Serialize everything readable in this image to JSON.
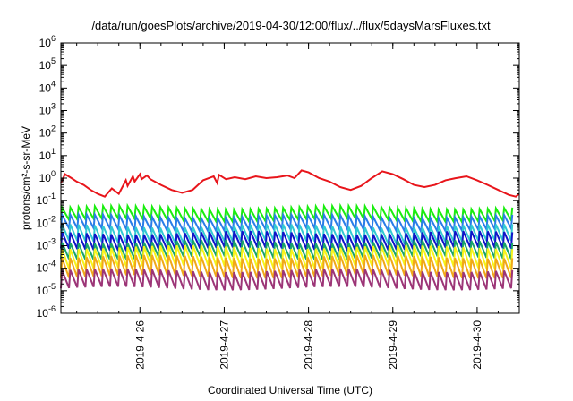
{
  "chart_data": {
    "type": "line",
    "title": "/data/run/goesPlots/archive/2019-04-30/12:00/flux/../flux/5daysMarsFluxes.txt",
    "xlabel": "Coordinated Universal Time (UTC)",
    "ylabel": "protons/cm²-s-sr-MeV",
    "y_scale": "log",
    "ylim": [
      1e-06,
      1000000.0
    ],
    "y_ticks": [
      {
        "value": 1e-06,
        "base": "10",
        "exp": "-6"
      },
      {
        "value": 1e-05,
        "base": "10",
        "exp": "-5"
      },
      {
        "value": 0.0001,
        "base": "10",
        "exp": "-4"
      },
      {
        "value": 0.001,
        "base": "10",
        "exp": "-3"
      },
      {
        "value": 0.01,
        "base": "10",
        "exp": "-2"
      },
      {
        "value": 0.1,
        "base": "10",
        "exp": "-1"
      },
      {
        "value": 1.0,
        "base": "10",
        "exp": "0"
      },
      {
        "value": 10.0,
        "base": "10",
        "exp": "1"
      },
      {
        "value": 100.0,
        "base": "10",
        "exp": "2"
      },
      {
        "value": 1000.0,
        "base": "10",
        "exp": "3"
      },
      {
        "value": 10000.0,
        "base": "10",
        "exp": "4"
      },
      {
        "value": 100000.0,
        "base": "10",
        "exp": "5"
      },
      {
        "value": 1000000.0,
        "base": "10",
        "exp": "6"
      }
    ],
    "xlim": [
      "2019-04-25T01:30",
      "2019-04-30T12:00"
    ],
    "x_ticks": [
      "2019-4-26",
      "2019-4-27",
      "2019-4-28",
      "2019-4-29",
      "2019-4-30"
    ],
    "legend": "none",
    "grid": false,
    "series": [
      {
        "color": "#e8151b",
        "x": [
          "2019-04-25T01:30",
          "2019-04-25T02:40",
          "2019-04-25T04:30",
          "2019-04-25T06:00",
          "2019-04-25T08:00",
          "2019-04-25T10:00",
          "2019-04-25T12:00",
          "2019-04-25T14:00",
          "2019-04-25T16:00",
          "2019-04-25T18:00",
          "2019-04-25T20:00",
          "2019-04-25T20:30",
          "2019-04-25T22:00",
          "2019-04-25T22:30",
          "2019-04-26T00:00",
          "2019-04-26T00:30",
          "2019-04-26T02:00",
          "2019-04-26T03:00",
          "2019-04-26T06:00",
          "2019-04-26T09:00",
          "2019-04-26T12:00",
          "2019-04-26T15:00",
          "2019-04-26T18:00",
          "2019-04-26T21:00",
          "2019-04-26T22:00",
          "2019-04-26T22:30",
          "2019-04-27T00:30",
          "2019-04-27T03:00",
          "2019-04-27T06:00",
          "2019-04-27T09:00",
          "2019-04-27T12:00",
          "2019-04-27T15:00",
          "2019-04-27T18:00",
          "2019-04-27T20:00",
          "2019-04-27T22:00",
          "2019-04-28T00:00",
          "2019-04-28T03:00",
          "2019-04-28T06:00",
          "2019-04-28T09:00",
          "2019-04-28T12:00",
          "2019-04-28T15:00",
          "2019-04-28T18:00",
          "2019-04-28T21:00",
          "2019-04-29T00:00",
          "2019-04-29T03:00",
          "2019-04-29T06:00",
          "2019-04-29T09:00",
          "2019-04-29T12:00",
          "2019-04-29T15:00",
          "2019-04-29T18:00",
          "2019-04-29T21:00",
          "2019-04-30T00:00",
          "2019-04-30T03:00",
          "2019-04-30T06:00",
          "2019-04-30T09:00",
          "2019-04-30T11:00",
          "2019-04-30T12:00"
        ],
        "y": [
          0.6,
          1.5,
          1.0,
          0.7,
          0.5,
          0.3,
          0.2,
          0.15,
          0.35,
          0.2,
          0.8,
          0.45,
          1.2,
          0.7,
          1.5,
          0.9,
          1.3,
          0.9,
          0.5,
          0.3,
          0.22,
          0.3,
          0.8,
          1.2,
          0.6,
          1.4,
          0.9,
          1.1,
          0.9,
          1.2,
          1.0,
          1.1,
          1.3,
          1.0,
          2.2,
          1.8,
          1.0,
          0.7,
          0.4,
          0.3,
          0.45,
          1.0,
          2.0,
          1.5,
          0.9,
          0.5,
          0.4,
          0.5,
          0.8,
          1.0,
          1.2,
          0.8,
          0.5,
          0.3,
          0.18,
          0.15,
          0.2
        ]
      },
      {
        "color": "#1aed0f",
        "level": 0.03,
        "x": [
          "2019-04-25T01:30",
          "2019-04-30T12:00"
        ],
        "y": [
          0.03,
          0.03
        ]
      },
      {
        "color": "#2a7de8",
        "level": 0.012,
        "x": [
          "2019-04-25T01:30",
          "2019-04-30T12:00"
        ],
        "y": [
          0.012,
          0.012
        ]
      },
      {
        "color": "#32c9d2",
        "level": 0.004,
        "x": [
          "2019-04-25T01:30",
          "2019-04-30T12:00"
        ],
        "y": [
          0.004,
          0.004
        ]
      },
      {
        "color": "#0f14c8",
        "level": 0.002,
        "x": [
          "2019-04-25T01:30",
          "2019-04-30T12:00"
        ],
        "y": [
          0.002,
          0.002
        ]
      },
      {
        "color": "#18a36b",
        "level": 0.0008,
        "x": [
          "2019-04-25T01:30",
          "2019-04-30T12:00"
        ],
        "y": [
          0.0008,
          0.0008
        ]
      },
      {
        "color": "#f7f31a",
        "level": 0.0004,
        "x": [
          "2019-04-25T01:30",
          "2019-04-30T12:00"
        ],
        "y": [
          0.0004,
          0.0004
        ]
      },
      {
        "color": "#f0a818",
        "level": 0.00015,
        "x": [
          "2019-04-25T01:30",
          "2019-04-30T12:00"
        ],
        "y": [
          0.00015,
          0.00015
        ]
      },
      {
        "color": "#9c3577",
        "level": 4e-05,
        "x": [
          "2019-04-25T01:30",
          "2019-04-30T12:00"
        ],
        "y": [
          4e-05,
          4e-05
        ]
      }
    ]
  }
}
